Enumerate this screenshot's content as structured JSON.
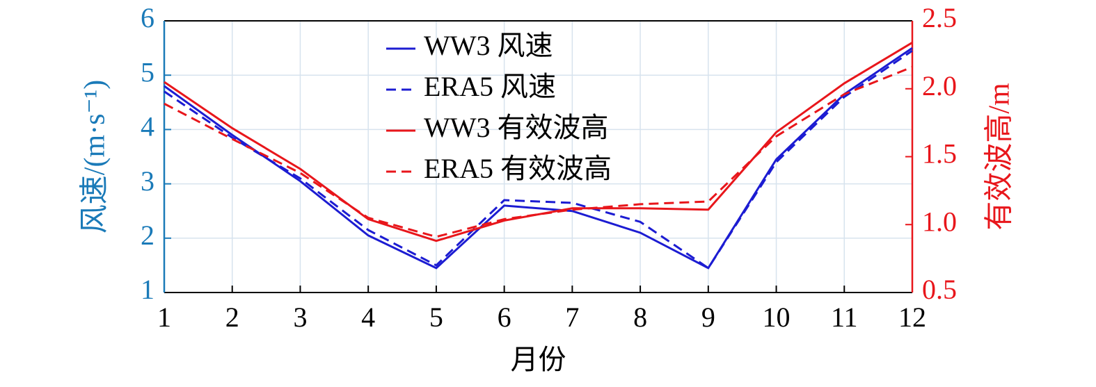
{
  "chart_data": {
    "type": "line",
    "x": [
      1,
      2,
      3,
      4,
      5,
      6,
      7,
      8,
      9,
      10,
      11,
      12
    ],
    "xlim": [
      1,
      12
    ],
    "xticks": [
      1,
      2,
      3,
      4,
      5,
      6,
      7,
      8,
      9,
      10,
      11,
      12
    ],
    "xlabel": "月份",
    "ylabel": "风速/(m·s⁻¹)",
    "ylabel_color": "#1a7ab8",
    "ylim": [
      1,
      6
    ],
    "yticks": [
      1,
      2,
      3,
      4,
      5,
      6
    ],
    "y2label": "有效波高/m",
    "y2label_color": "#e8161b",
    "y2lim": [
      0.5,
      2.5
    ],
    "y2ticks": [
      0.5,
      {
        "value": 1.0,
        "label": "1.0"
      },
      1.5,
      {
        "value": 2.0,
        "label": "2.0"
      },
      2.5
    ],
    "grid": true,
    "legend": "top",
    "series": [
      {
        "name": "WW3 风速",
        "color": "#1c1cd2",
        "dash": false,
        "values": [
          4.8,
          3.9,
          3.05,
          2.05,
          1.45,
          2.6,
          2.5,
          2.1,
          1.45,
          3.45,
          4.65,
          5.5
        ]
      },
      {
        "name": "ERA5 风速",
        "color": "#1c1cd2",
        "dash": true,
        "values": [
          4.7,
          3.85,
          3.1,
          2.15,
          1.5,
          2.7,
          2.65,
          2.3,
          1.45,
          3.4,
          4.6,
          5.45
        ]
      },
      {
        "name": "WW3 有效波高",
        "color": "#e8161b",
        "dash": false,
        "axis": "y2",
        "values": [
          2.05,
          1.71,
          1.41,
          1.04,
          0.88,
          1.03,
          1.12,
          1.12,
          1.11,
          1.68,
          2.04,
          2.34
        ]
      },
      {
        "name": "ERA5 有效波高",
        "color": "#e8161b",
        "dash": true,
        "axis": "y2",
        "values": [
          1.89,
          1.63,
          1.38,
          1.05,
          0.91,
          1.04,
          1.11,
          1.15,
          1.17,
          1.65,
          1.96,
          2.16
        ]
      }
    ]
  }
}
